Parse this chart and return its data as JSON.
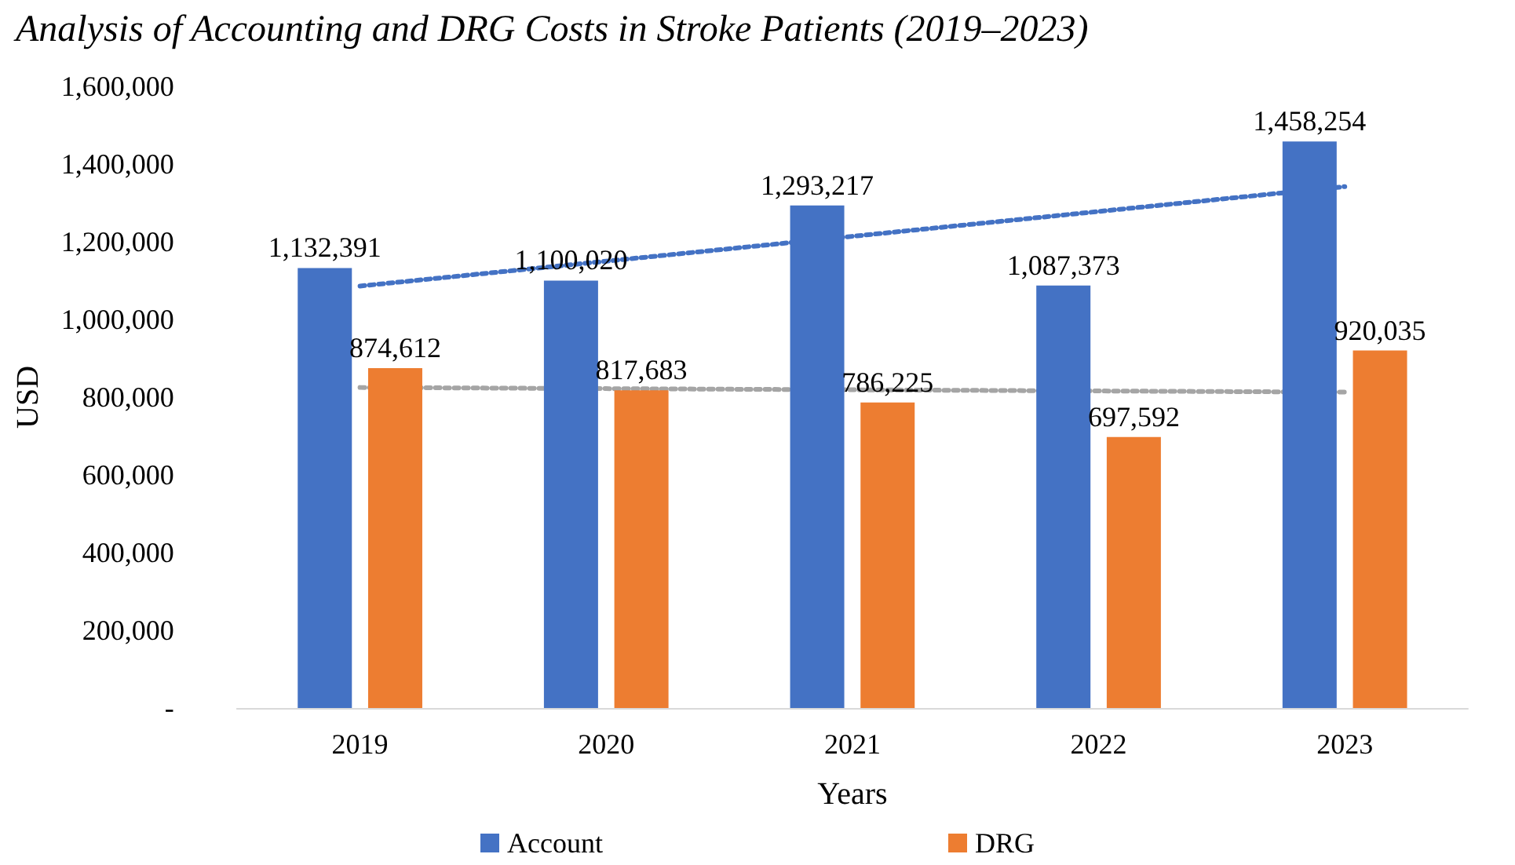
{
  "chart_data": {
    "type": "bar",
    "title": "Analysis of Accounting and DRG Costs in Stroke Patients (2019–2023)",
    "xlabel": "Years",
    "ylabel": "USD",
    "categories": [
      "2019",
      "2020",
      "2021",
      "2022",
      "2023"
    ],
    "series": [
      {
        "name": "Account",
        "color": "#4472c4",
        "values": [
          1132391,
          1100020,
          1293217,
          1087373,
          1458254
        ],
        "value_labels": [
          "1,132,391",
          "1,100,020",
          "1,293,217",
          "1,087,373",
          "1,458,254"
        ]
      },
      {
        "name": "DRG",
        "color": "#ed7d31",
        "values": [
          874612,
          817683,
          786225,
          697592,
          920035
        ],
        "value_labels": [
          "874,612",
          "817,683",
          "786,225",
          "697,592",
          "920,035"
        ]
      },
      {
        "type": "line",
        "color": "#4472c4",
        "values": [
          1086000,
          1150000,
          1214000,
          1278000,
          1342000
        ],
        "line_style": "dotted"
      },
      {
        "type": "line",
        "color": "#a5a5a5",
        "values": [
          825000,
          822000,
          819000,
          816000,
          813000
        ],
        "line_style": "dotted"
      }
    ],
    "ylim": [
      0,
      1600000
    ],
    "yticks": [
      {
        "value": 0,
        "label": "-"
      },
      {
        "value": 200000,
        "label": "200,000"
      },
      {
        "value": 400000,
        "label": "400,000"
      },
      {
        "value": 600000,
        "label": "600,000"
      },
      {
        "value": 800000,
        "label": "800,000"
      },
      {
        "value": 1000000,
        "label": "1,000,000"
      },
      {
        "value": 1200000,
        "label": "1,200,000"
      },
      {
        "value": 1400000,
        "label": "1,400,000"
      },
      {
        "value": 1600000,
        "label": "1,600,000"
      }
    ],
    "grid": false,
    "legend": "bottom",
    "marker": "none"
  }
}
